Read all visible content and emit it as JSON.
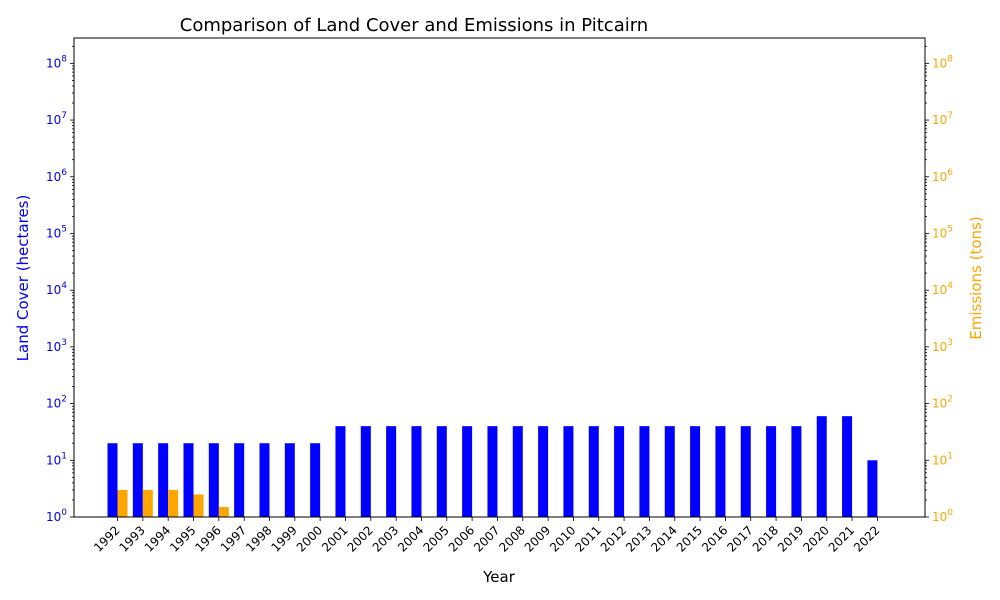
{
  "chart_data": {
    "type": "bar",
    "title": "Comparison of Land Cover and Emissions in Pitcairn",
    "xlabel": "Year",
    "ylabel_left": "Land Cover (hectares)",
    "ylabel_right": "Emissions (tons)",
    "scale": "log",
    "ylim": [
      1,
      280000000
    ],
    "categories": [
      "1992",
      "1993",
      "1994",
      "1995",
      "1996",
      "1997",
      "1998",
      "1999",
      "2000",
      "2001",
      "2002",
      "2003",
      "2004",
      "2005",
      "2006",
      "2007",
      "2008",
      "2009",
      "2010",
      "2011",
      "2012",
      "2013",
      "2014",
      "2015",
      "2016",
      "2017",
      "2018",
      "2019",
      "2020",
      "2021",
      "2022"
    ],
    "series": [
      {
        "name": "Land Cover (hectares)",
        "axis": "left",
        "color": "#0000ff",
        "values": [
          20,
          20,
          20,
          20,
          20,
          20,
          20,
          20,
          20,
          40,
          40,
          40,
          40,
          40,
          40,
          40,
          40,
          40,
          40,
          40,
          40,
          40,
          40,
          40,
          40,
          40,
          40,
          40,
          60,
          60,
          10
        ]
      },
      {
        "name": "Emissions (tons)",
        "axis": "right",
        "color": "#ffa500",
        "values": [
          3,
          3,
          3,
          2.5,
          1.5,
          null,
          null,
          null,
          null,
          null,
          null,
          null,
          null,
          null,
          null,
          null,
          null,
          null,
          null,
          null,
          null,
          null,
          null,
          null,
          null,
          null,
          null,
          null,
          null,
          null,
          null
        ]
      }
    ],
    "left_ticks": [
      "10^0",
      "10^1",
      "10^2",
      "10^3",
      "10^4",
      "10^5",
      "10^6",
      "10^7",
      "10^8"
    ],
    "right_ticks": [
      "10^0",
      "10^1",
      "10^2",
      "10^3",
      "10^4",
      "10^5",
      "10^6",
      "10^7",
      "10^8"
    ],
    "left_tick_color": "#0000ff",
    "right_tick_color": "#ffa500",
    "grid": false,
    "legend": "none"
  }
}
